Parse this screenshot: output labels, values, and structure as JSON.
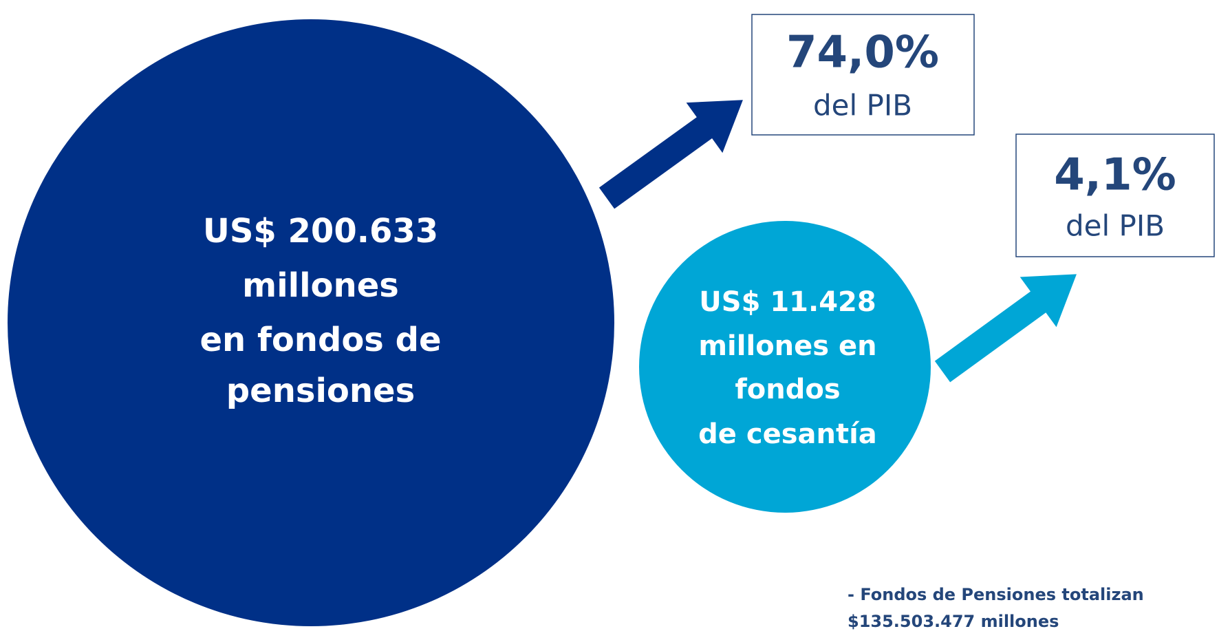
{
  "pensiones": {
    "lines": [
      "US$ 200.633",
      "millones",
      "en fondos de",
      "pensiones"
    ]
  },
  "cesantia": {
    "lines": [
      "US$ 11.428",
      "millones en",
      "fondos",
      "de cesantía"
    ]
  },
  "box_pensiones": {
    "value": "74,0%",
    "label": "del PIB"
  },
  "box_cesantia": {
    "value": "4,1%",
    "label": "del PIB"
  },
  "note": {
    "lines": [
      "- Fondos de Pensiones totalizan",
      "$135.503.477 millones"
    ]
  }
}
